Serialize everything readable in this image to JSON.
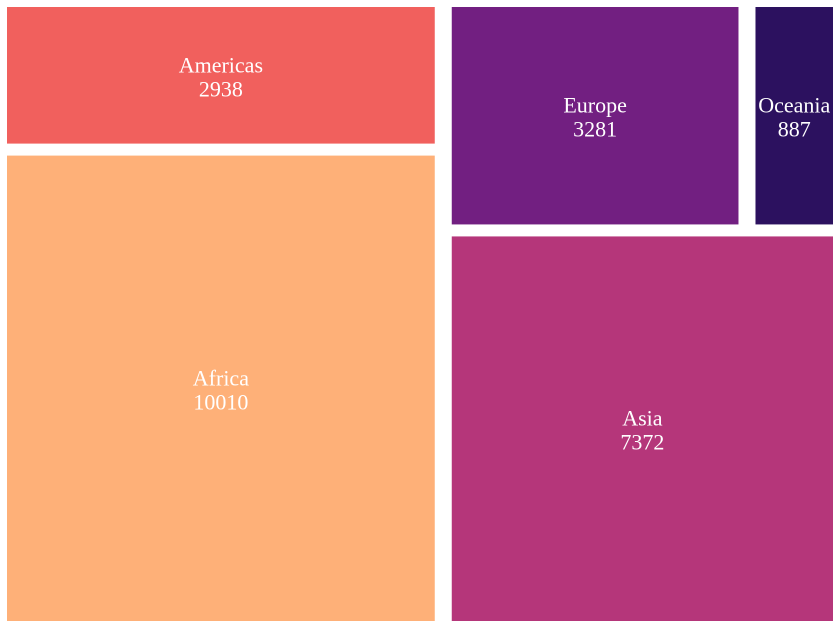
{
  "chart_data": {
    "type": "treemap",
    "title": "",
    "items": [
      {
        "name": "Africa",
        "value": 10010,
        "color": "#FEB078"
      },
      {
        "name": "Asia",
        "value": 7372,
        "color": "#B5367A"
      },
      {
        "name": "Europe",
        "value": 3281,
        "color": "#721F81"
      },
      {
        "name": "Americas",
        "value": 2938,
        "color": "#F1605D"
      },
      {
        "name": "Oceania",
        "value": 887,
        "color": "#2C115F"
      }
    ]
  }
}
